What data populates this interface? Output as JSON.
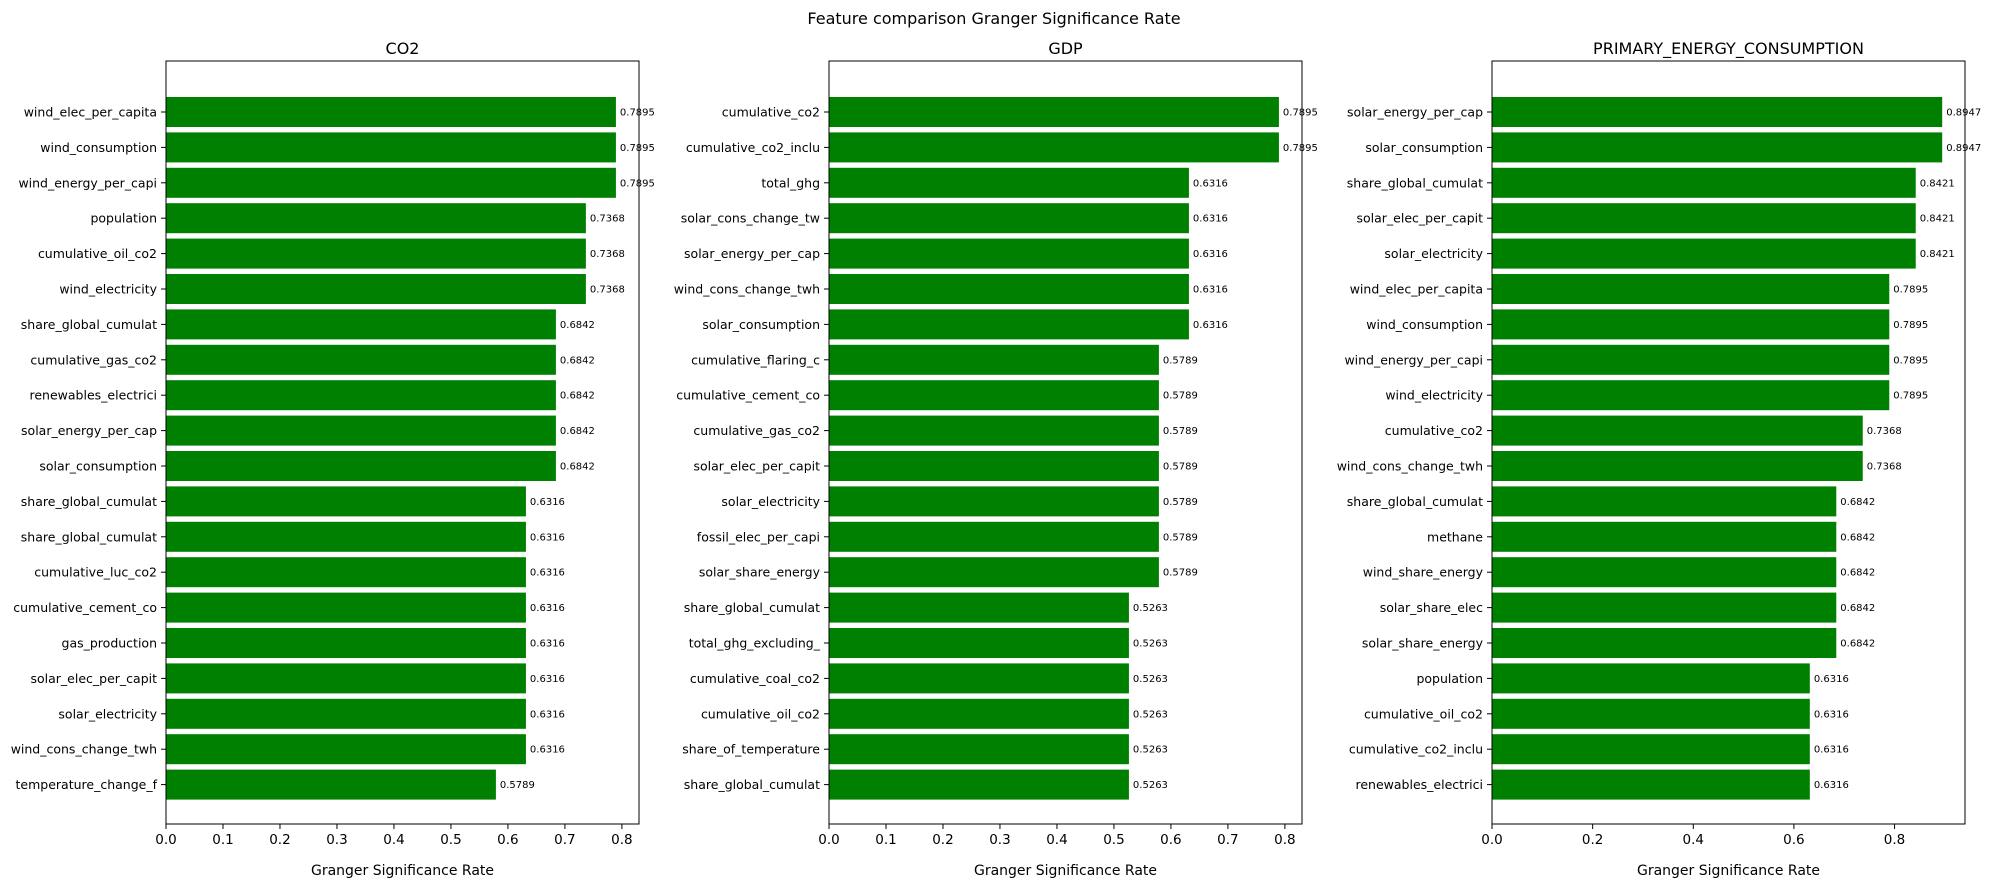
{
  "figure_title": "Feature comparison Granger Significance Rate",
  "bar_color": "#008000",
  "chart_data": [
    {
      "type": "bar",
      "orientation": "horizontal",
      "title": "CO2",
      "xlabel": "Granger Significance Rate",
      "xlim": [
        0,
        0.83
      ],
      "xticks": [
        0.0,
        0.1,
        0.2,
        0.3,
        0.4,
        0.5,
        0.6,
        0.7,
        0.8
      ],
      "xtick_labels": [
        "0.0",
        "0.1",
        "0.2",
        "0.3",
        "0.4",
        "0.5",
        "0.6",
        "0.7",
        "0.8"
      ],
      "categories": [
        "wind_elec_per_capita",
        "wind_consumption",
        "wind_energy_per_capi",
        "population",
        "cumulative_oil_co2",
        "wind_electricity",
        "share_global_cumulat",
        "cumulative_gas_co2",
        "renewables_electrici",
        "solar_energy_per_cap",
        "solar_consumption",
        "share_global_cumulat",
        "share_global_cumulat",
        "cumulative_luc_co2",
        "cumulative_cement_co",
        "gas_production",
        "solar_elec_per_capit",
        "solar_electricity",
        "wind_cons_change_twh",
        "temperature_change_f"
      ],
      "values": [
        0.7895,
        0.7895,
        0.7895,
        0.7368,
        0.7368,
        0.7368,
        0.6842,
        0.6842,
        0.6842,
        0.6842,
        0.6842,
        0.6316,
        0.6316,
        0.6316,
        0.6316,
        0.6316,
        0.6316,
        0.6316,
        0.6316,
        0.5789
      ],
      "value_labels": [
        "0.7895",
        "0.7895",
        "0.7895",
        "0.7368",
        "0.7368",
        "0.7368",
        "0.6842",
        "0.6842",
        "0.6842",
        "0.6842",
        "0.6842",
        "0.6316",
        "0.6316",
        "0.6316",
        "0.6316",
        "0.6316",
        "0.6316",
        "0.6316",
        "0.6316",
        "0.5789"
      ],
      "grid": false
    },
    {
      "type": "bar",
      "orientation": "horizontal",
      "title": "GDP",
      "xlabel": "Granger Significance Rate",
      "xlim": [
        0,
        0.83
      ],
      "xticks": [
        0.0,
        0.1,
        0.2,
        0.3,
        0.4,
        0.5,
        0.6,
        0.7,
        0.8
      ],
      "xtick_labels": [
        "0.0",
        "0.1",
        "0.2",
        "0.3",
        "0.4",
        "0.5",
        "0.6",
        "0.7",
        "0.8"
      ],
      "categories": [
        "cumulative_co2",
        "cumulative_co2_inclu",
        "total_ghg",
        "solar_cons_change_tw",
        "solar_energy_per_cap",
        "wind_cons_change_twh",
        "solar_consumption",
        "cumulative_flaring_c",
        "cumulative_cement_co",
        "cumulative_gas_co2",
        "solar_elec_per_capit",
        "solar_electricity",
        "fossil_elec_per_capi",
        "solar_share_energy",
        "share_global_cumulat",
        "total_ghg_excluding_",
        "cumulative_coal_co2",
        "cumulative_oil_co2",
        "share_of_temperature",
        "share_global_cumulat"
      ],
      "values": [
        0.7895,
        0.7895,
        0.6316,
        0.6316,
        0.6316,
        0.6316,
        0.6316,
        0.5789,
        0.5789,
        0.5789,
        0.5789,
        0.5789,
        0.5789,
        0.5789,
        0.5263,
        0.5263,
        0.5263,
        0.5263,
        0.5263,
        0.5263
      ],
      "value_labels": [
        "0.7895",
        "0.7895",
        "0.6316",
        "0.6316",
        "0.6316",
        "0.6316",
        "0.6316",
        "0.5789",
        "0.5789",
        "0.5789",
        "0.5789",
        "0.5789",
        "0.5789",
        "0.5789",
        "0.5263",
        "0.5263",
        "0.5263",
        "0.5263",
        "0.5263",
        "0.5263"
      ],
      "grid": false
    },
    {
      "type": "bar",
      "orientation": "horizontal",
      "title": "PRIMARY_ENERGY_CONSUMPTION",
      "xlabel": "Granger Significance Rate",
      "xlim": [
        0,
        0.94
      ],
      "xticks": [
        0.0,
        0.2,
        0.4,
        0.6,
        0.8
      ],
      "xtick_labels": [
        "0.0",
        "0.2",
        "0.4",
        "0.6",
        "0.8"
      ],
      "categories": [
        "solar_energy_per_cap",
        "solar_consumption",
        "share_global_cumulat",
        "solar_elec_per_capit",
        "solar_electricity",
        "wind_elec_per_capita",
        "wind_consumption",
        "wind_energy_per_capi",
        "wind_electricity",
        "cumulative_co2",
        "wind_cons_change_twh",
        "share_global_cumulat",
        "methane",
        "wind_share_energy",
        "solar_share_elec",
        "solar_share_energy",
        "population",
        "cumulative_oil_co2",
        "cumulative_co2_inclu",
        "renewables_electrici"
      ],
      "values": [
        0.8947,
        0.8947,
        0.8421,
        0.8421,
        0.8421,
        0.7895,
        0.7895,
        0.7895,
        0.7895,
        0.7368,
        0.7368,
        0.6842,
        0.6842,
        0.6842,
        0.6842,
        0.6842,
        0.6316,
        0.6316,
        0.6316,
        0.6316
      ],
      "value_labels": [
        "0.8947",
        "0.8947",
        "0.8421",
        "0.8421",
        "0.8421",
        "0.7895",
        "0.7895",
        "0.7895",
        "0.7895",
        "0.7368",
        "0.7368",
        "0.6842",
        "0.6842",
        "0.6842",
        "0.6842",
        "0.6842",
        "0.6316",
        "0.6316",
        "0.6316",
        "0.6316"
      ],
      "grid": false
    }
  ]
}
